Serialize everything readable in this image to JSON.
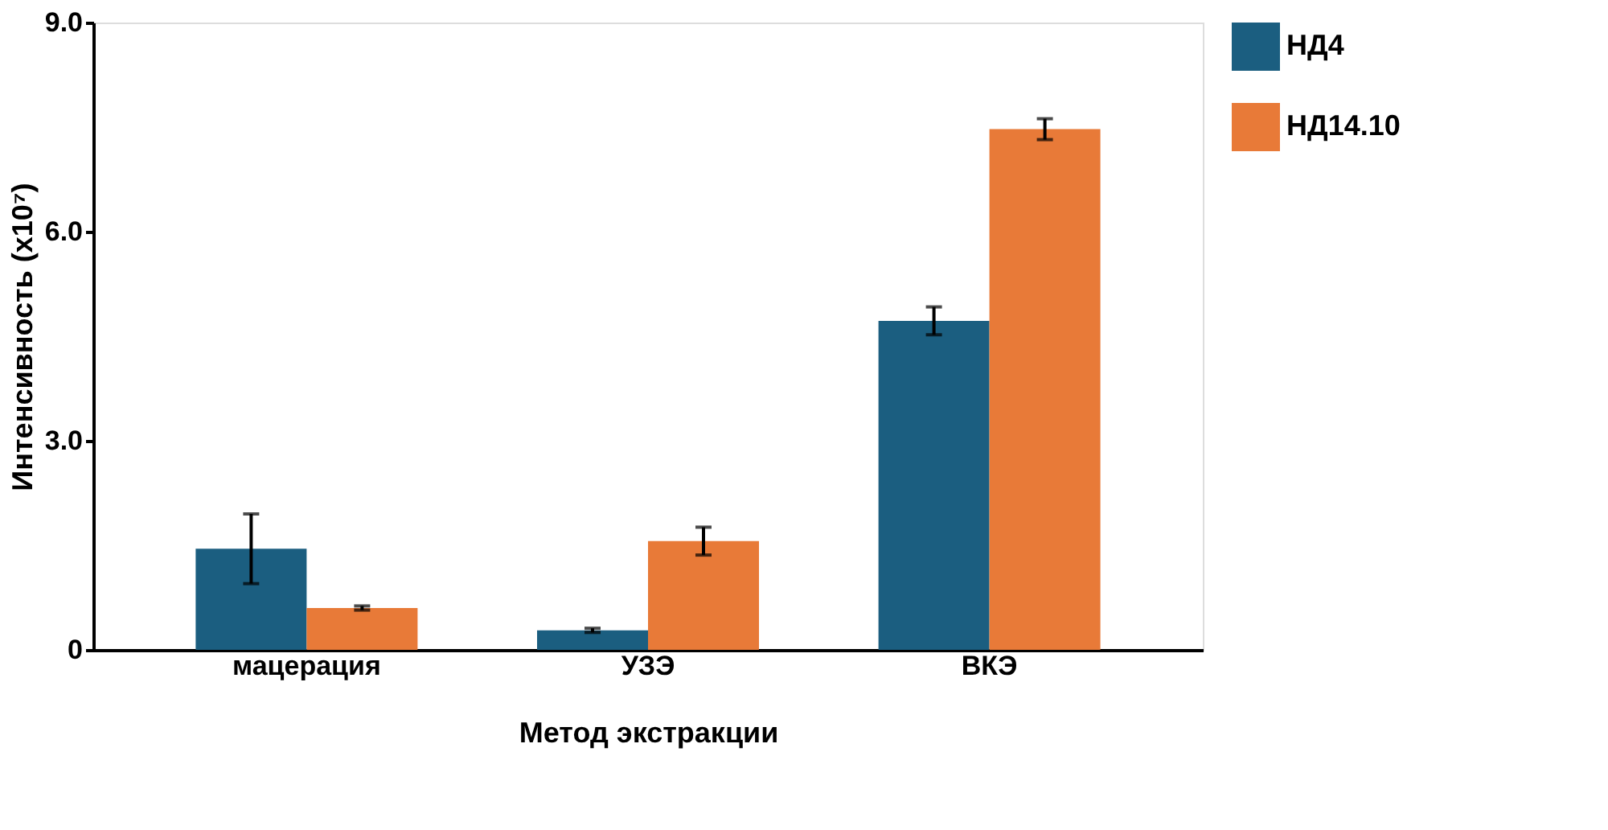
{
  "chart_data": {
    "type": "bar",
    "xlabel": "Метод экстракции",
    "ylabel": "Интенсивность (x10⁷)",
    "categories": [
      "мацерация",
      "УЗЭ",
      "ВКЭ"
    ],
    "series": [
      {
        "name": "НД4",
        "color": "#1b5e80",
        "values": [
          1.45,
          0.28,
          4.72
        ],
        "errors": [
          0.5,
          0.03,
          0.2
        ]
      },
      {
        "name": "НД14.10",
        "color": "#e87a38",
        "values": [
          0.6,
          1.56,
          7.47
        ],
        "errors": [
          0.03,
          0.2,
          0.15
        ]
      }
    ],
    "ylim": [
      0,
      9
    ],
    "yticks": [
      0,
      {
        "value": 3,
        "label": "3.0"
      },
      {
        "value": 6,
        "label": "6.0"
      },
      {
        "value": 9,
        "label": "9.0"
      }
    ],
    "grid": false,
    "legend": "right"
  }
}
